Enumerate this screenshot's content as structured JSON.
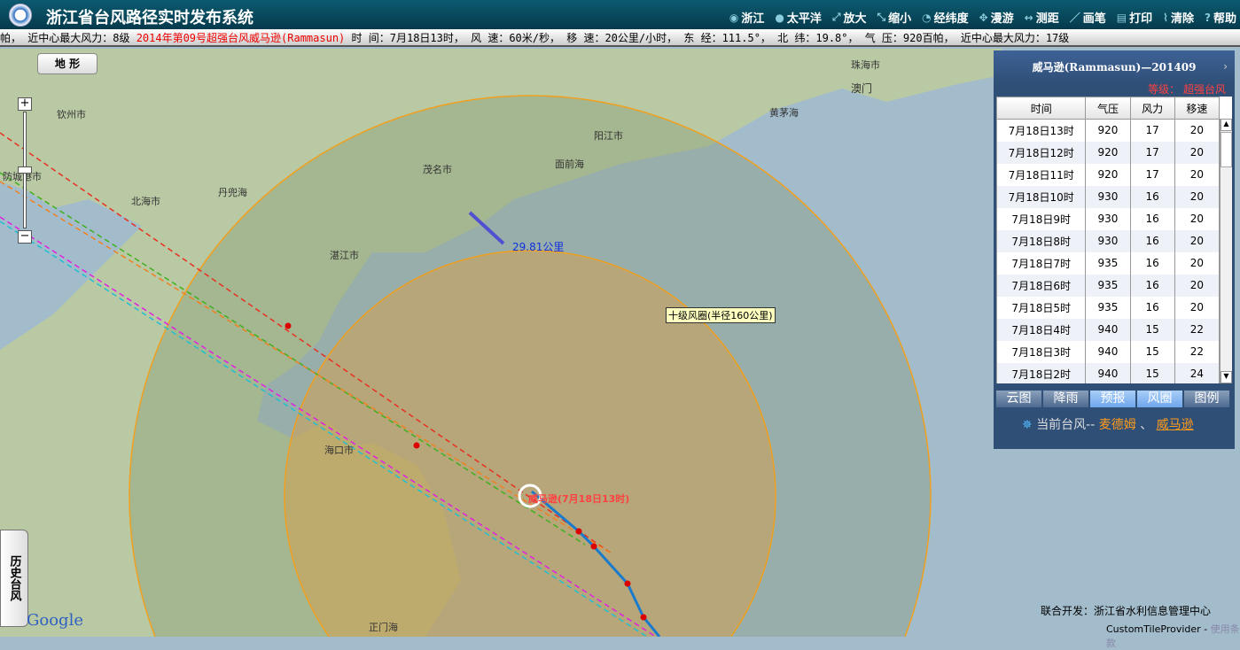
{
  "header": {
    "title": "浙江省台风路径实时发布系统",
    "tools": [
      {
        "icon": "globe-icon",
        "label": "浙江"
      },
      {
        "icon": "globe-blue-icon",
        "label": "太平洋"
      },
      {
        "icon": "zoom-in-icon",
        "label": "放大"
      },
      {
        "icon": "zoom-out-icon",
        "label": "缩小"
      },
      {
        "icon": "clock-icon",
        "label": "经纬度"
      },
      {
        "icon": "pan-icon",
        "label": "漫游"
      },
      {
        "icon": "measure-icon",
        "label": "测距"
      },
      {
        "icon": "pen-icon",
        "label": "画笔"
      },
      {
        "icon": "print-icon",
        "label": "打印"
      },
      {
        "icon": "broom-icon",
        "label": "清除"
      },
      {
        "icon": "help-icon",
        "label": "帮助"
      }
    ]
  },
  "ticker": {
    "pre": "帕， 近中心最大风力：8级 ",
    "highlight": "2014年第09号超强台风威马逊(Rammasun)",
    "post": " 时 间：7月18日13时， 风 速：60米/秒， 移 速：20公里/小时， 东 经：111.5°， 北 纬：19.8°， 气 压：920百帕， 近中心最大风力：17级"
  },
  "map": {
    "terrain_button": "地 形",
    "history_tab": "历史台风",
    "places": [
      "钦州市",
      "防城港市",
      "北海市",
      "丹兜海",
      "湛江市",
      "茂名市",
      "阳江市",
      "面前海",
      "黄茅海",
      "珠海市",
      "澳门",
      "海口市",
      "正门海"
    ],
    "distance_label": "29.81公里",
    "wind_circle_label": "十级风圈(半径160公里)",
    "typhoon_label": "威马逊(7月18日13时)",
    "google": "Google"
  },
  "panel": {
    "title": "威马逊(Rammasun)—201409",
    "level": "等级： 超强台风",
    "columns": [
      "时间",
      "气压",
      "风力",
      "移速"
    ],
    "rows": [
      [
        "7月18日13时",
        "920",
        "17",
        "20"
      ],
      [
        "7月18日12时",
        "920",
        "17",
        "20"
      ],
      [
        "7月18日11时",
        "920",
        "17",
        "20"
      ],
      [
        "7月18日10时",
        "930",
        "16",
        "20"
      ],
      [
        "7月18日9时",
        "930",
        "16",
        "20"
      ],
      [
        "7月18日8时",
        "930",
        "16",
        "20"
      ],
      [
        "7月18日7时",
        "935",
        "16",
        "20"
      ],
      [
        "7月18日6时",
        "935",
        "16",
        "20"
      ],
      [
        "7月18日5时",
        "935",
        "16",
        "20"
      ],
      [
        "7月18日4时",
        "940",
        "15",
        "22"
      ],
      [
        "7月18日3时",
        "940",
        "15",
        "22"
      ],
      [
        "7月18日2时",
        "940",
        "15",
        "24"
      ]
    ],
    "tabs": [
      "云图",
      "降雨",
      "预报",
      "风圈",
      "图例"
    ],
    "active_tabs": [
      "预报",
      "风圈"
    ],
    "current_prefix": "当前台风-- ",
    "current_typhoons": [
      "麦德姆",
      "威马逊"
    ],
    "separator": "、"
  },
  "footer": {
    "dev": "联合开发：浙江省水利信息管理中心",
    "provider": "CustomTileProvider - ",
    "terms": "使用条款"
  },
  "colors": {
    "header": "#0b5a70",
    "highlight": "#ee0000",
    "wind7": "#e8a040",
    "wind10": "#c89a50",
    "track": "#1a7acc"
  }
}
